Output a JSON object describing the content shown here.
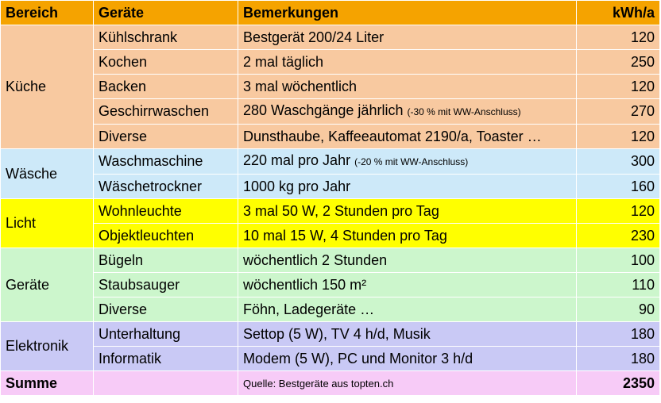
{
  "headers": {
    "bereich": "Bereich",
    "geraete": "Geräte",
    "bemerkungen": "Bemerkungen",
    "kwh": "kWh/a"
  },
  "colors": {
    "header": "#f5a300",
    "kueche": "#f8c9a0",
    "waesche": "#cde9f9",
    "licht": "#ffff00",
    "geraete": "#ccf6cc",
    "elektronik": "#c9c9f5",
    "summe": "#f7cbf7"
  },
  "groups": {
    "kueche": {
      "label": "Küche",
      "rows": [
        {
          "device": "Kühlschrank",
          "remark": "Bestgerät 200/24 Liter",
          "remark_note": "",
          "kwh": "120"
        },
        {
          "device": "Kochen",
          "remark": "2 mal täglich",
          "remark_note": "",
          "kwh": "250"
        },
        {
          "device": "Backen",
          "remark": "3 mal wöchentlich",
          "remark_note": "",
          "kwh": "120"
        },
        {
          "device": "Geschirrwaschen",
          "remark": "280 Waschgänge jährlich",
          "remark_note": "(-30 % mit WW-Anschluss)",
          "kwh": "270"
        },
        {
          "device": "Diverse",
          "remark": "Dunsthaube, Kaffeeautomat 2190/a, Toaster …",
          "remark_note": "",
          "kwh": "120"
        }
      ]
    },
    "waesche": {
      "label": "Wäsche",
      "rows": [
        {
          "device": "Waschmaschine",
          "remark": "220 mal pro Jahr",
          "remark_note": "(-20 % mit WW-Anschluss)",
          "kwh": "300"
        },
        {
          "device": "Wäschetrockner",
          "remark": "1000 kg pro Jahr",
          "remark_note": "",
          "kwh": "160"
        }
      ]
    },
    "licht": {
      "label": "Licht",
      "rows": [
        {
          "device": "Wohnleuchte",
          "remark": "3 mal 50 W, 2 Stunden pro Tag",
          "remark_note": "",
          "kwh": "120"
        },
        {
          "device": "Objektleuchten",
          "remark": "10 mal 15 W, 4 Stunden pro Tag",
          "remark_note": "",
          "kwh": "230"
        }
      ]
    },
    "geraete": {
      "label": "Geräte",
      "rows": [
        {
          "device": "Bügeln",
          "remark": "wöchentlich 2 Stunden",
          "remark_note": "",
          "kwh": "100"
        },
        {
          "device": "Staubsauger",
          "remark": "wöchentlich 150 m²",
          "remark_note": "",
          "kwh": "110"
        },
        {
          "device": "Diverse",
          "remark": "Föhn, Ladegeräte …",
          "remark_note": "",
          "kwh": "90"
        }
      ]
    },
    "elektronik": {
      "label": "Elektronik",
      "rows": [
        {
          "device": "Unterhaltung",
          "remark": "Settop (5 W), TV 4 h/d, Musik",
          "remark_note": "",
          "kwh": "180"
        },
        {
          "device": "Informatik",
          "remark": "Modem (5 W), PC und Monitor 3 h/d",
          "remark_note": "",
          "kwh": "180"
        }
      ]
    }
  },
  "summe": {
    "label": "Summe",
    "source": "Quelle: Bestgeräte aus topten.ch",
    "total": "2350"
  }
}
